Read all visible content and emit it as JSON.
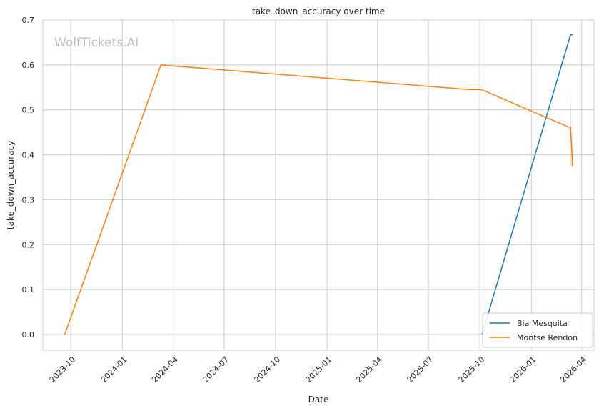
{
  "chart_data": {
    "type": "line",
    "title": "take_down_accuracy over time",
    "xlabel": "Date",
    "ylabel": "take_down_accuracy",
    "watermark": "WolfTickets.AI",
    "x_ticks": [
      "2023-10",
      "2024-01",
      "2024-04",
      "2024-07",
      "2024-10",
      "2025-01",
      "2025-04",
      "2025-07",
      "2025-10",
      "2026-01",
      "2026-04"
    ],
    "y_ticks": [
      "0.0",
      "0.1",
      "0.2",
      "0.3",
      "0.4",
      "0.5",
      "0.6",
      "0.7"
    ],
    "xlim": [
      "2023-08-12",
      "2026-04-23"
    ],
    "ylim": [
      -0.035,
      0.7
    ],
    "grid": true,
    "legend_position": "bottom-right",
    "series": [
      {
        "name": "Bia Mesquita",
        "color": "#1f77b4",
        "points": [
          {
            "x": "2025-10-05",
            "y": 0.0
          },
          {
            "x": "2026-03-12",
            "y": 0.667
          },
          {
            "x": "2026-03-16",
            "y": 0.667
          }
        ]
      },
      {
        "name": "Montse Rendon",
        "color": "#ff7f0e",
        "points": [
          {
            "x": "2023-09-20",
            "y": 0.0
          },
          {
            "x": "2024-03-10",
            "y": 0.6
          },
          {
            "x": "2025-09-14",
            "y": 0.545
          },
          {
            "x": "2025-10-04",
            "y": 0.545
          },
          {
            "x": "2026-03-12",
            "y": 0.46
          },
          {
            "x": "2026-03-16",
            "y": 0.375
          }
        ],
        "band": [
          {
            "x": "2026-03-12",
            "low": 0.375,
            "high": 0.545
          },
          {
            "x": "2026-03-16",
            "low": 0.375,
            "high": 0.375
          }
        ]
      }
    ]
  }
}
